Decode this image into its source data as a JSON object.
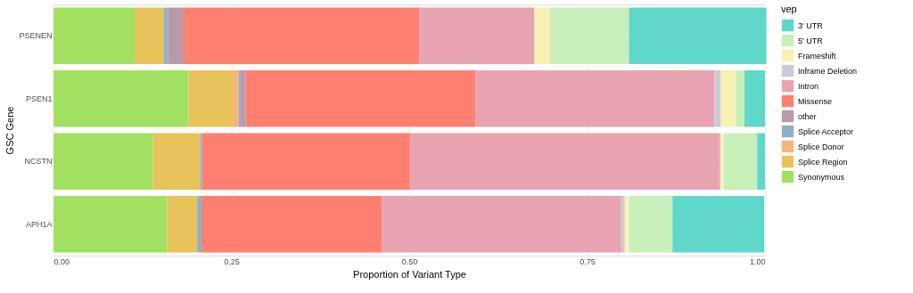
{
  "chart_data": {
    "type": "bar",
    "orientation": "horizontal",
    "stacked": true,
    "xlabel": "Proportion of Variant Type",
    "ylabel": "GSC Gene",
    "legend_title": "vep",
    "legend": "right",
    "grid": true,
    "categories": [
      "PSENEN",
      "PSEN1",
      "NCSTN",
      "APH1A"
    ],
    "xlim": [
      0,
      1
    ],
    "xticks": [
      {
        "value": 0,
        "label": "0.00"
      },
      {
        "value": 0.25,
        "label": "0.25"
      },
      {
        "value": 0.5,
        "label": "0.50"
      },
      {
        "value": 0.75,
        "label": "0.75"
      },
      {
        "value": 1,
        "label": "1.00"
      }
    ],
    "series": [
      {
        "name": "Synonymous",
        "color": "#a2e062",
        "values": [
          0.114,
          0.19,
          0.14,
          0.16
        ]
      },
      {
        "name": "Splice Region",
        "color": "#e8c35a",
        "values": [
          0.041,
          0.062,
          0.066,
          0.042
        ]
      },
      {
        "name": "Splice Donor",
        "color": "#f7b47a",
        "values": [
          0,
          0.008,
          0,
          0
        ]
      },
      {
        "name": "Splice Acceptor",
        "color": "#8fb1c6",
        "values": [
          0.006,
          0.002,
          0.003,
          0.006
        ]
      },
      {
        "name": "other",
        "color": "#b89aa8",
        "values": [
          0.022,
          0.008,
          0,
          0
        ]
      },
      {
        "name": "Missense",
        "color": "#ff8070",
        "values": [
          0.331,
          0.323,
          0.292,
          0.254
        ]
      },
      {
        "name": "Intron",
        "color": "#e8a4b1",
        "values": [
          0.162,
          0.336,
          0.435,
          0.336
        ]
      },
      {
        "name": "Inframe Deletion",
        "color": "#cdc9d6",
        "values": [
          0,
          0.009,
          0.002,
          0.005
        ]
      },
      {
        "name": "Frameshift",
        "color": "#f7f2b4",
        "values": [
          0.022,
          0.021,
          0.004,
          0.006
        ]
      },
      {
        "name": "5' UTR",
        "color": "#c8eeba",
        "values": [
          0.111,
          0.012,
          0.047,
          0.061
        ]
      },
      {
        "name": "3' UTR",
        "color": "#5fd7c9",
        "values": [
          0.193,
          0.029,
          0.011,
          0.129
        ]
      }
    ]
  }
}
